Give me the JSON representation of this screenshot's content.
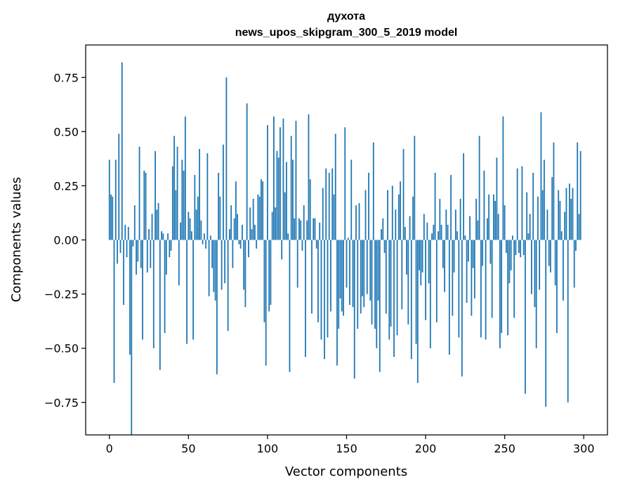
{
  "chart_data": {
    "type": "bar",
    "title": "духота",
    "subtitle": "news_upos_skipgram_300_5_2019 model",
    "xlabel": "Vector components",
    "ylabel": "Components values",
    "xlim": [
      -15,
      315
    ],
    "ylim": [
      -0.9,
      0.9
    ],
    "x_ticks": [
      0,
      50,
      100,
      150,
      200,
      250,
      300
    ],
    "y_ticks": [
      0.75,
      0.5,
      0.25,
      0.0,
      -0.25,
      -0.5,
      -0.75
    ],
    "x_tick_labels": [
      "0",
      "50",
      "100",
      "150",
      "200",
      "250",
      "300"
    ],
    "y_tick_labels": [
      "0.75",
      "0.50",
      "0.25",
      "0.00",
      "−0.25",
      "−0.50",
      "−0.75"
    ],
    "bar_color": "#1f77b4",
    "grid": false,
    "values": [
      0.37,
      0.21,
      0.2,
      -0.66,
      0.37,
      -0.11,
      0.49,
      -0.06,
      0.82,
      -0.3,
      0.07,
      -0.08,
      0.06,
      -0.53,
      -0.9,
      -0.03,
      0.16,
      -0.16,
      -0.1,
      0.43,
      -0.13,
      -0.46,
      0.32,
      0.31,
      -0.15,
      0.05,
      -0.13,
      0.12,
      -0.5,
      0.41,
      0.14,
      0.17,
      -0.6,
      0.04,
      0.03,
      -0.43,
      -0.16,
      0.03,
      -0.08,
      -0.05,
      0.34,
      0.48,
      0.23,
      0.43,
      -0.21,
      0.08,
      0.37,
      0.32,
      0.57,
      -0.48,
      0.13,
      0.1,
      0.04,
      -0.46,
      0.3,
      0.14,
      0.2,
      0.42,
      0.09,
      -0.02,
      0.03,
      -0.04,
      0.4,
      -0.26,
      0.02,
      -0.13,
      -0.24,
      -0.28,
      -0.62,
      0.31,
      0.2,
      -0.23,
      0.44,
      -0.2,
      0.75,
      -0.42,
      0.05,
      0.16,
      -0.13,
      0.1,
      0.27,
      0.12,
      -0.02,
      -0.04,
      0.07,
      -0.23,
      -0.31,
      0.63,
      -0.08,
      0.15,
      0.05,
      0.19,
      0.07,
      -0.04,
      0.21,
      0.2,
      0.28,
      0.27,
      -0.38,
      -0.58,
      0.53,
      -0.33,
      -0.3,
      0.13,
      0.57,
      0.15,
      0.41,
      0.38,
      0.52,
      -0.09,
      0.56,
      0.22,
      0.36,
      0.03,
      -0.61,
      0.48,
      0.37,
      0.1,
      0.55,
      -0.22,
      0.1,
      0.09,
      -0.05,
      0.16,
      -0.54,
      0.09,
      0.58,
      0.28,
      -0.34,
      0.1,
      0.1,
      -0.04,
      -0.38,
      0.08,
      -0.46,
      0.24,
      -0.55,
      0.33,
      -0.45,
      0.31,
      -0.33,
      0.33,
      0.21,
      0.49,
      -0.58,
      -0.41,
      -0.27,
      -0.33,
      -0.35,
      0.52,
      -0.22,
      0.01,
      -0.3,
      0.37,
      -0.31,
      -0.64,
      0.16,
      -0.41,
      0.17,
      -0.34,
      -0.26,
      -0.31,
      0.23,
      -0.25,
      0.31,
      -0.28,
      -0.39,
      0.45,
      -0.41,
      -0.5,
      -0.28,
      -0.61,
      0.05,
      0.1,
      -0.06,
      -0.34,
      0.23,
      -0.46,
      -0.4,
      0.25,
      -0.54,
      0.14,
      -0.44,
      0.21,
      0.27,
      -0.32,
      0.42,
      0.06,
      -0.16,
      -0.39,
      0.11,
      -0.55,
      0.2,
      0.48,
      -0.48,
      -0.66,
      -0.14,
      -0.21,
      -0.15,
      0.12,
      -0.37,
      0.08,
      -0.2,
      -0.5,
      0.03,
      0.07,
      0.31,
      -0.38,
      0.04,
      0.19,
      0.07,
      -0.13,
      -0.24,
      0.14,
      0.07,
      -0.53,
      0.3,
      -0.35,
      -0.15,
      0.14,
      0.04,
      -0.45,
      0.19,
      -0.63,
      0.4,
      0.02,
      -0.29,
      -0.1,
      0.11,
      -0.35,
      -0.13,
      -0.27,
      0.19,
      0.09,
      0.48,
      -0.45,
      -0.12,
      0.32,
      -0.46,
      0.1,
      0.21,
      -0.11,
      -0.36,
      0.21,
      0.18,
      0.38,
      0.12,
      -0.5,
      -0.43,
      0.57,
      0.16,
      -0.06,
      -0.44,
      -0.2,
      -0.14,
      0.02,
      -0.36,
      -0.07,
      0.33,
      -0.06,
      -0.08,
      0.34,
      -0.07,
      -0.71,
      0.22,
      0.03,
      0.12,
      -0.25,
      0.31,
      -0.31,
      -0.5,
      0.2,
      -0.23,
      0.59,
      0.23,
      0.37,
      -0.77,
      0.14,
      -0.12,
      -0.15,
      0.29,
      0.45,
      -0.21,
      -0.43,
      0.23,
      0.18,
      0.04,
      -0.28,
      0.13,
      0.24,
      -0.75,
      0.26,
      0.19,
      0.24,
      -0.22,
      -0.05,
      0.45,
      0.12,
      0.41
    ]
  }
}
